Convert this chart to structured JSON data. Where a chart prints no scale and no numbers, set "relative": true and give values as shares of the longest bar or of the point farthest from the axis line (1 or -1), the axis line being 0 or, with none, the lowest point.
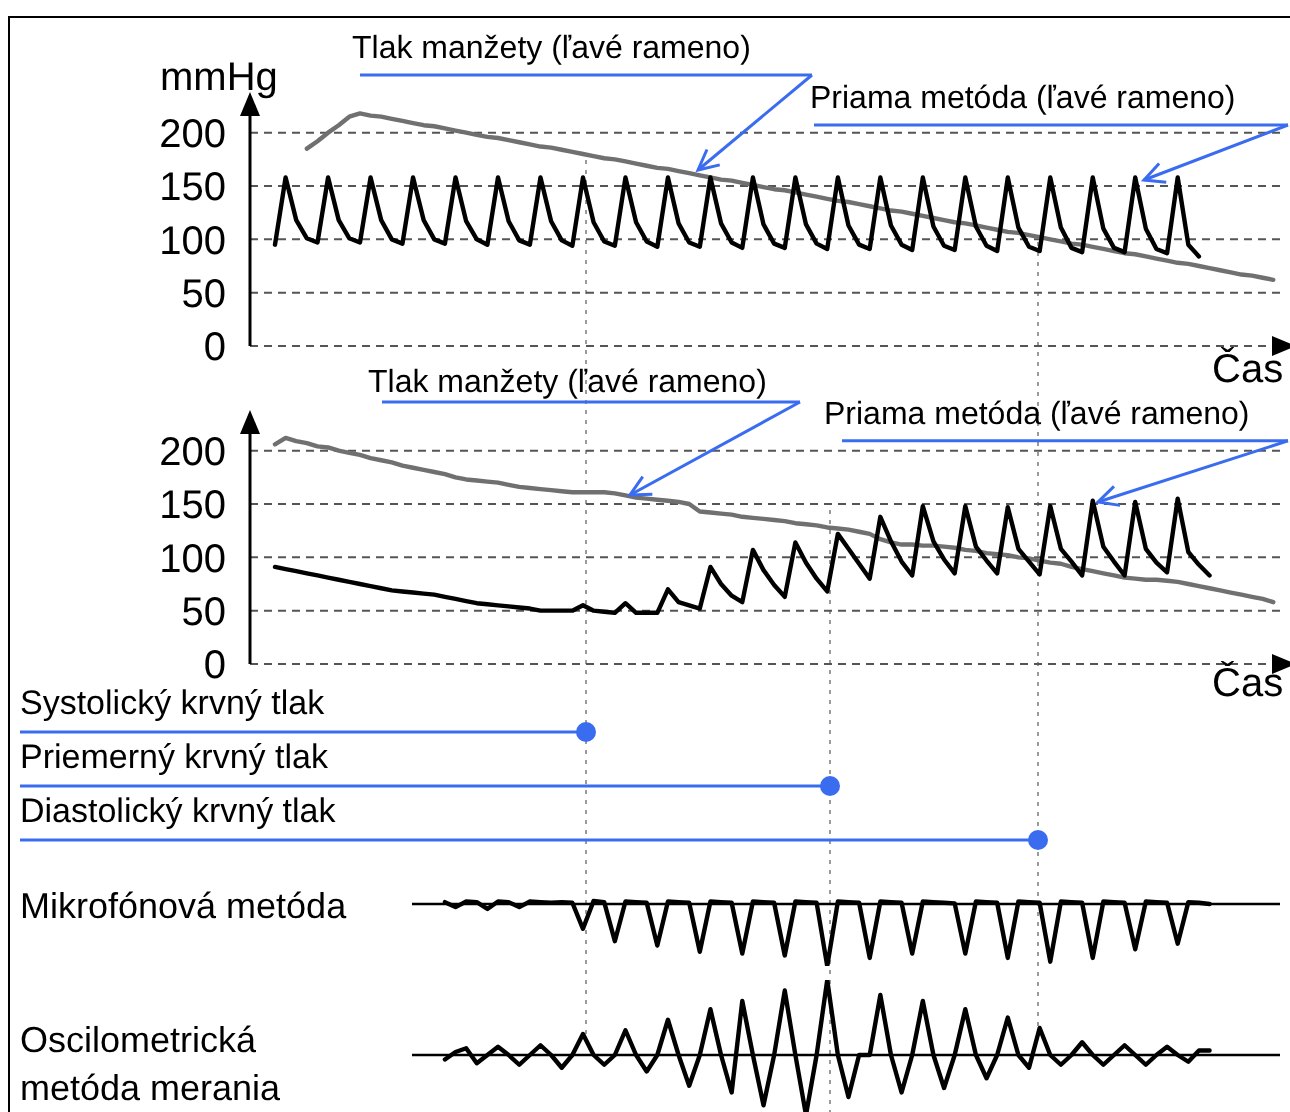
{
  "chart_data": [
    {
      "type": "line",
      "ylabel": "mmHg",
      "xlabel": "Čas",
      "tick_labels": "y",
      "grid": "y",
      "ylim": [
        0,
        225
      ],
      "yticks": [
        0,
        50,
        100,
        150,
        200
      ],
      "categories": [
        null,
        null,
        null,
        null,
        null,
        null,
        null,
        null,
        null,
        null,
        null,
        null,
        null,
        null,
        null,
        null,
        null,
        null,
        null,
        null,
        null,
        null,
        null,
        null,
        null,
        null,
        null,
        null,
        null,
        null,
        null,
        null,
        null,
        null,
        null,
        null,
        null,
        null,
        null,
        null,
        null,
        null,
        null,
        null,
        null,
        null,
        null,
        null,
        null,
        null,
        null,
        null,
        null,
        null,
        null,
        null,
        null,
        null,
        null,
        null,
        null,
        null,
        null,
        null,
        null,
        null,
        null,
        null,
        null,
        null,
        null,
        null,
        null,
        null,
        null,
        null,
        null,
        null,
        null,
        null,
        null,
        null,
        null,
        null,
        null,
        null,
        null,
        null,
        null,
        null,
        null,
        null,
        null,
        null,
        null
      ],
      "series": [
        {
          "name": "Tlak manžety (ľavé rameno)",
          "color": "#707070",
          "values": [
            null,
            null,
            null,
            185,
            192,
            200,
            207,
            215,
            218,
            216,
            215,
            213,
            211,
            209,
            207,
            206,
            204,
            202,
            200,
            198,
            196,
            195,
            193,
            191,
            189,
            187,
            186,
            184,
            182,
            180,
            178,
            176,
            175,
            173,
            171,
            169,
            167,
            166,
            164,
            162,
            160,
            158,
            156,
            155,
            153,
            151,
            149,
            147,
            146,
            144,
            142,
            140,
            138,
            136,
            135,
            133,
            131,
            129,
            127,
            126,
            124,
            122,
            120,
            118,
            116,
            115,
            113,
            111,
            109,
            107,
            106,
            104,
            102,
            100,
            98,
            96,
            95,
            93,
            91,
            89,
            87,
            86,
            84,
            82,
            80,
            78,
            77,
            75,
            73,
            71,
            69,
            67,
            66,
            64,
            62
          ]
        },
        {
          "name": "Priama metóda (ľavé rameno)",
          "color": "#000000",
          "values": [
            95,
            158,
            118,
            101,
            97,
            158,
            118,
            101,
            97,
            158,
            118,
            100,
            96,
            158,
            118,
            100,
            96,
            158,
            117,
            100,
            95,
            158,
            117,
            99,
            95,
            158,
            117,
            99,
            94,
            158,
            116,
            98,
            94,
            158,
            116,
            98,
            93,
            158,
            115,
            97,
            93,
            158,
            115,
            97,
            92,
            158,
            114,
            96,
            92,
            158,
            114,
            96,
            91,
            158,
            113,
            95,
            91,
            158,
            113,
            95,
            90,
            158,
            112,
            94,
            90,
            158,
            112,
            94,
            89,
            158,
            111,
            93,
            89,
            158,
            111,
            92,
            88,
            158,
            110,
            92,
            88,
            158,
            110,
            91,
            87,
            158,
            95,
            84,
            null,
            null,
            null,
            null,
            null,
            null,
            null
          ]
        }
      ]
    },
    {
      "type": "line",
      "xlabel": "Čas",
      "tick_labels": "y",
      "grid": "y",
      "ylim": [
        0,
        225
      ],
      "yticks": [
        0,
        50,
        100,
        150,
        200
      ],
      "annotations": [
        "Systolický krvný tlak",
        "Priemerný krvný tlak",
        "Diastolický krvný tlak"
      ],
      "categories": [
        null,
        null,
        null,
        null,
        null,
        null,
        null,
        null,
        null,
        null,
        null,
        null,
        null,
        null,
        null,
        null,
        null,
        null,
        null,
        null,
        null,
        null,
        null,
        null,
        null,
        null,
        null,
        null,
        null,
        null,
        null,
        null,
        null,
        null,
        null,
        null,
        null,
        null,
        null,
        null,
        null,
        null,
        null,
        null,
        null,
        null,
        null,
        null,
        null,
        null,
        null,
        null,
        null,
        null,
        null,
        null,
        null,
        null,
        null,
        null,
        null,
        null,
        null,
        null,
        null,
        null,
        null,
        null,
        null,
        null,
        null,
        null,
        null,
        null,
        null,
        null,
        null,
        null,
        null,
        null,
        null,
        null,
        null,
        null,
        null,
        null,
        null,
        null,
        null,
        null,
        null,
        null,
        null,
        null,
        null
      ],
      "series": [
        {
          "name": "Tlak manžety (ľavé rameno)",
          "color": "#707070",
          "values": [
            206,
            212,
            209,
            207,
            204,
            203,
            200,
            198,
            196,
            193,
            191,
            189,
            186,
            184,
            182,
            180,
            178,
            175,
            173,
            172,
            171,
            170,
            168,
            166,
            165,
            164,
            163,
            162,
            161,
            161,
            161,
            161,
            160,
            158,
            156,
            155,
            154,
            153,
            152,
            150,
            143,
            142,
            141,
            140,
            138,
            137,
            136,
            135,
            134,
            132,
            131,
            130,
            128,
            127,
            126,
            124,
            122,
            117,
            114,
            112,
            112,
            111,
            111,
            110,
            109,
            107,
            106,
            104,
            103,
            102,
            100,
            99,
            97,
            95,
            94,
            91,
            89,
            87,
            85,
            83,
            81,
            80,
            79,
            79,
            78,
            77,
            75,
            73,
            71,
            69,
            67,
            65,
            63,
            61,
            58
          ]
        },
        {
          "name": "Priama metóda (ľavé rameno)",
          "color": "#000000",
          "values": [
            91,
            89,
            87,
            85,
            83,
            81,
            79,
            77,
            75,
            73,
            71,
            69,
            68,
            67,
            66,
            65,
            63,
            61,
            59,
            57,
            56,
            55,
            54,
            53,
            52,
            50,
            50,
            50,
            50,
            55,
            50,
            49,
            48,
            57,
            48,
            48,
            48,
            70,
            58,
            55,
            52,
            91,
            75,
            64,
            58,
            107,
            88,
            74,
            63,
            114,
            95,
            80,
            68,
            122,
            108,
            94,
            80,
            138,
            115,
            96,
            83,
            148,
            115,
            98,
            85,
            148,
            110,
            97,
            85,
            147,
            108,
            96,
            84,
            148,
            108,
            96,
            83,
            153,
            110,
            96,
            83,
            152,
            108,
            95,
            86,
            155,
            105,
            93,
            83,
            null,
            null,
            null,
            null,
            null,
            null
          ]
        }
      ]
    },
    {
      "type": "line",
      "ylabel": "Mikrofónová metóda",
      "relative": true,
      "tick_labels": false,
      "categories": [
        null,
        null,
        null,
        null,
        null,
        null,
        null,
        null,
        null,
        null,
        null,
        null,
        null,
        null,
        null,
        null,
        null,
        null,
        null,
        null,
        null,
        null,
        null,
        null,
        null,
        null,
        null,
        null,
        null,
        null,
        null,
        null,
        null,
        null,
        null,
        null,
        null,
        null,
        null,
        null,
        null,
        null,
        null,
        null,
        null,
        null,
        null,
        null,
        null,
        null,
        null,
        null,
        null,
        null,
        null,
        null,
        null,
        null,
        null,
        null,
        null,
        null,
        null,
        null,
        null,
        null,
        null,
        null,
        null,
        null,
        null,
        null,
        null,
        null,
        null,
        null,
        null,
        null,
        null,
        null,
        null,
        null,
        null,
        null,
        null,
        null,
        null,
        null,
        null,
        null,
        null,
        null,
        null,
        null,
        null
      ],
      "series": [
        {
          "color": "#000000",
          "values": [
            null,
            null,
            null,
            null,
            null,
            null,
            null,
            null,
            null,
            null,
            null,
            null,
            null,
            null,
            null,
            null,
            0.03,
            -0.05,
            0.04,
            0.03,
            -0.08,
            0.04,
            0.03,
            -0.05,
            0.04,
            0.03,
            0.02,
            0.03,
            0.02,
            -0.4,
            0.05,
            0.03,
            -0.6,
            0.04,
            0.03,
            0.02,
            -0.67,
            0.04,
            0.03,
            0.02,
            -0.77,
            0.04,
            0.03,
            0.02,
            -0.8,
            0.04,
            0.03,
            0.02,
            -0.83,
            0.04,
            0.03,
            0.02,
            -1,
            0.04,
            0.03,
            0.02,
            -0.87,
            0.04,
            0.03,
            0.02,
            -0.8,
            0.04,
            0.03,
            0.02,
            0.01,
            -0.8,
            0.04,
            0.03,
            0.02,
            -0.87,
            0.04,
            0.03,
            0.02,
            -0.93,
            0.04,
            0.03,
            0.02,
            -0.87,
            0.04,
            0.03,
            0.02,
            -0.73,
            0.04,
            0.03,
            0.02,
            -0.64,
            0.03,
            0.02,
            0,
            null,
            null,
            null,
            null,
            null,
            null
          ]
        }
      ]
    },
    {
      "type": "line",
      "ylabel": "Oscilometrická metóda merania",
      "relative": true,
      "tick_labels": false,
      "categories": [
        null,
        null,
        null,
        null,
        null,
        null,
        null,
        null,
        null,
        null,
        null,
        null,
        null,
        null,
        null,
        null,
        null,
        null,
        null,
        null,
        null,
        null,
        null,
        null,
        null,
        null,
        null,
        null,
        null,
        null,
        null,
        null,
        null,
        null,
        null,
        null,
        null,
        null,
        null,
        null,
        null,
        null,
        null,
        null,
        null,
        null,
        null,
        null,
        null,
        null,
        null,
        null,
        null,
        null,
        null,
        null,
        null,
        null,
        null,
        null,
        null,
        null,
        null,
        null,
        null,
        null,
        null,
        null,
        null,
        null,
        null,
        null,
        null,
        null,
        null,
        null,
        null,
        null,
        null,
        null,
        null,
        null,
        null,
        null,
        null,
        null,
        null,
        null,
        null,
        null,
        null,
        null,
        null,
        null,
        null
      ],
      "series": [
        {
          "color": "#000000",
          "values": [
            null,
            null,
            null,
            null,
            null,
            null,
            null,
            null,
            null,
            null,
            null,
            null,
            null,
            null,
            null,
            null,
            -0.06,
            0.04,
            0.09,
            -0.11,
            0,
            0.11,
            0,
            -0.13,
            0,
            0.13,
            0,
            -0.17,
            0,
            0.28,
            0,
            -0.13,
            0,
            0.33,
            0,
            -0.22,
            0,
            0.47,
            0,
            -0.41,
            0,
            0.61,
            0,
            -0.5,
            0.72,
            0,
            -0.67,
            0,
            0.86,
            0,
            -0.8,
            0,
            1,
            0,
            -0.56,
            0,
            0,
            0.8,
            0,
            -0.5,
            0,
            0.72,
            0,
            -0.44,
            0,
            0.61,
            0,
            -0.31,
            0,
            0.5,
            0,
            -0.17,
            0.36,
            0,
            -0.13,
            0,
            0.17,
            0,
            -0.13,
            0,
            0.13,
            0,
            -0.13,
            0,
            0.11,
            0,
            -0.09,
            0.06,
            0.06,
            null,
            null,
            null,
            null,
            null,
            null
          ]
        }
      ]
    }
  ]
}
